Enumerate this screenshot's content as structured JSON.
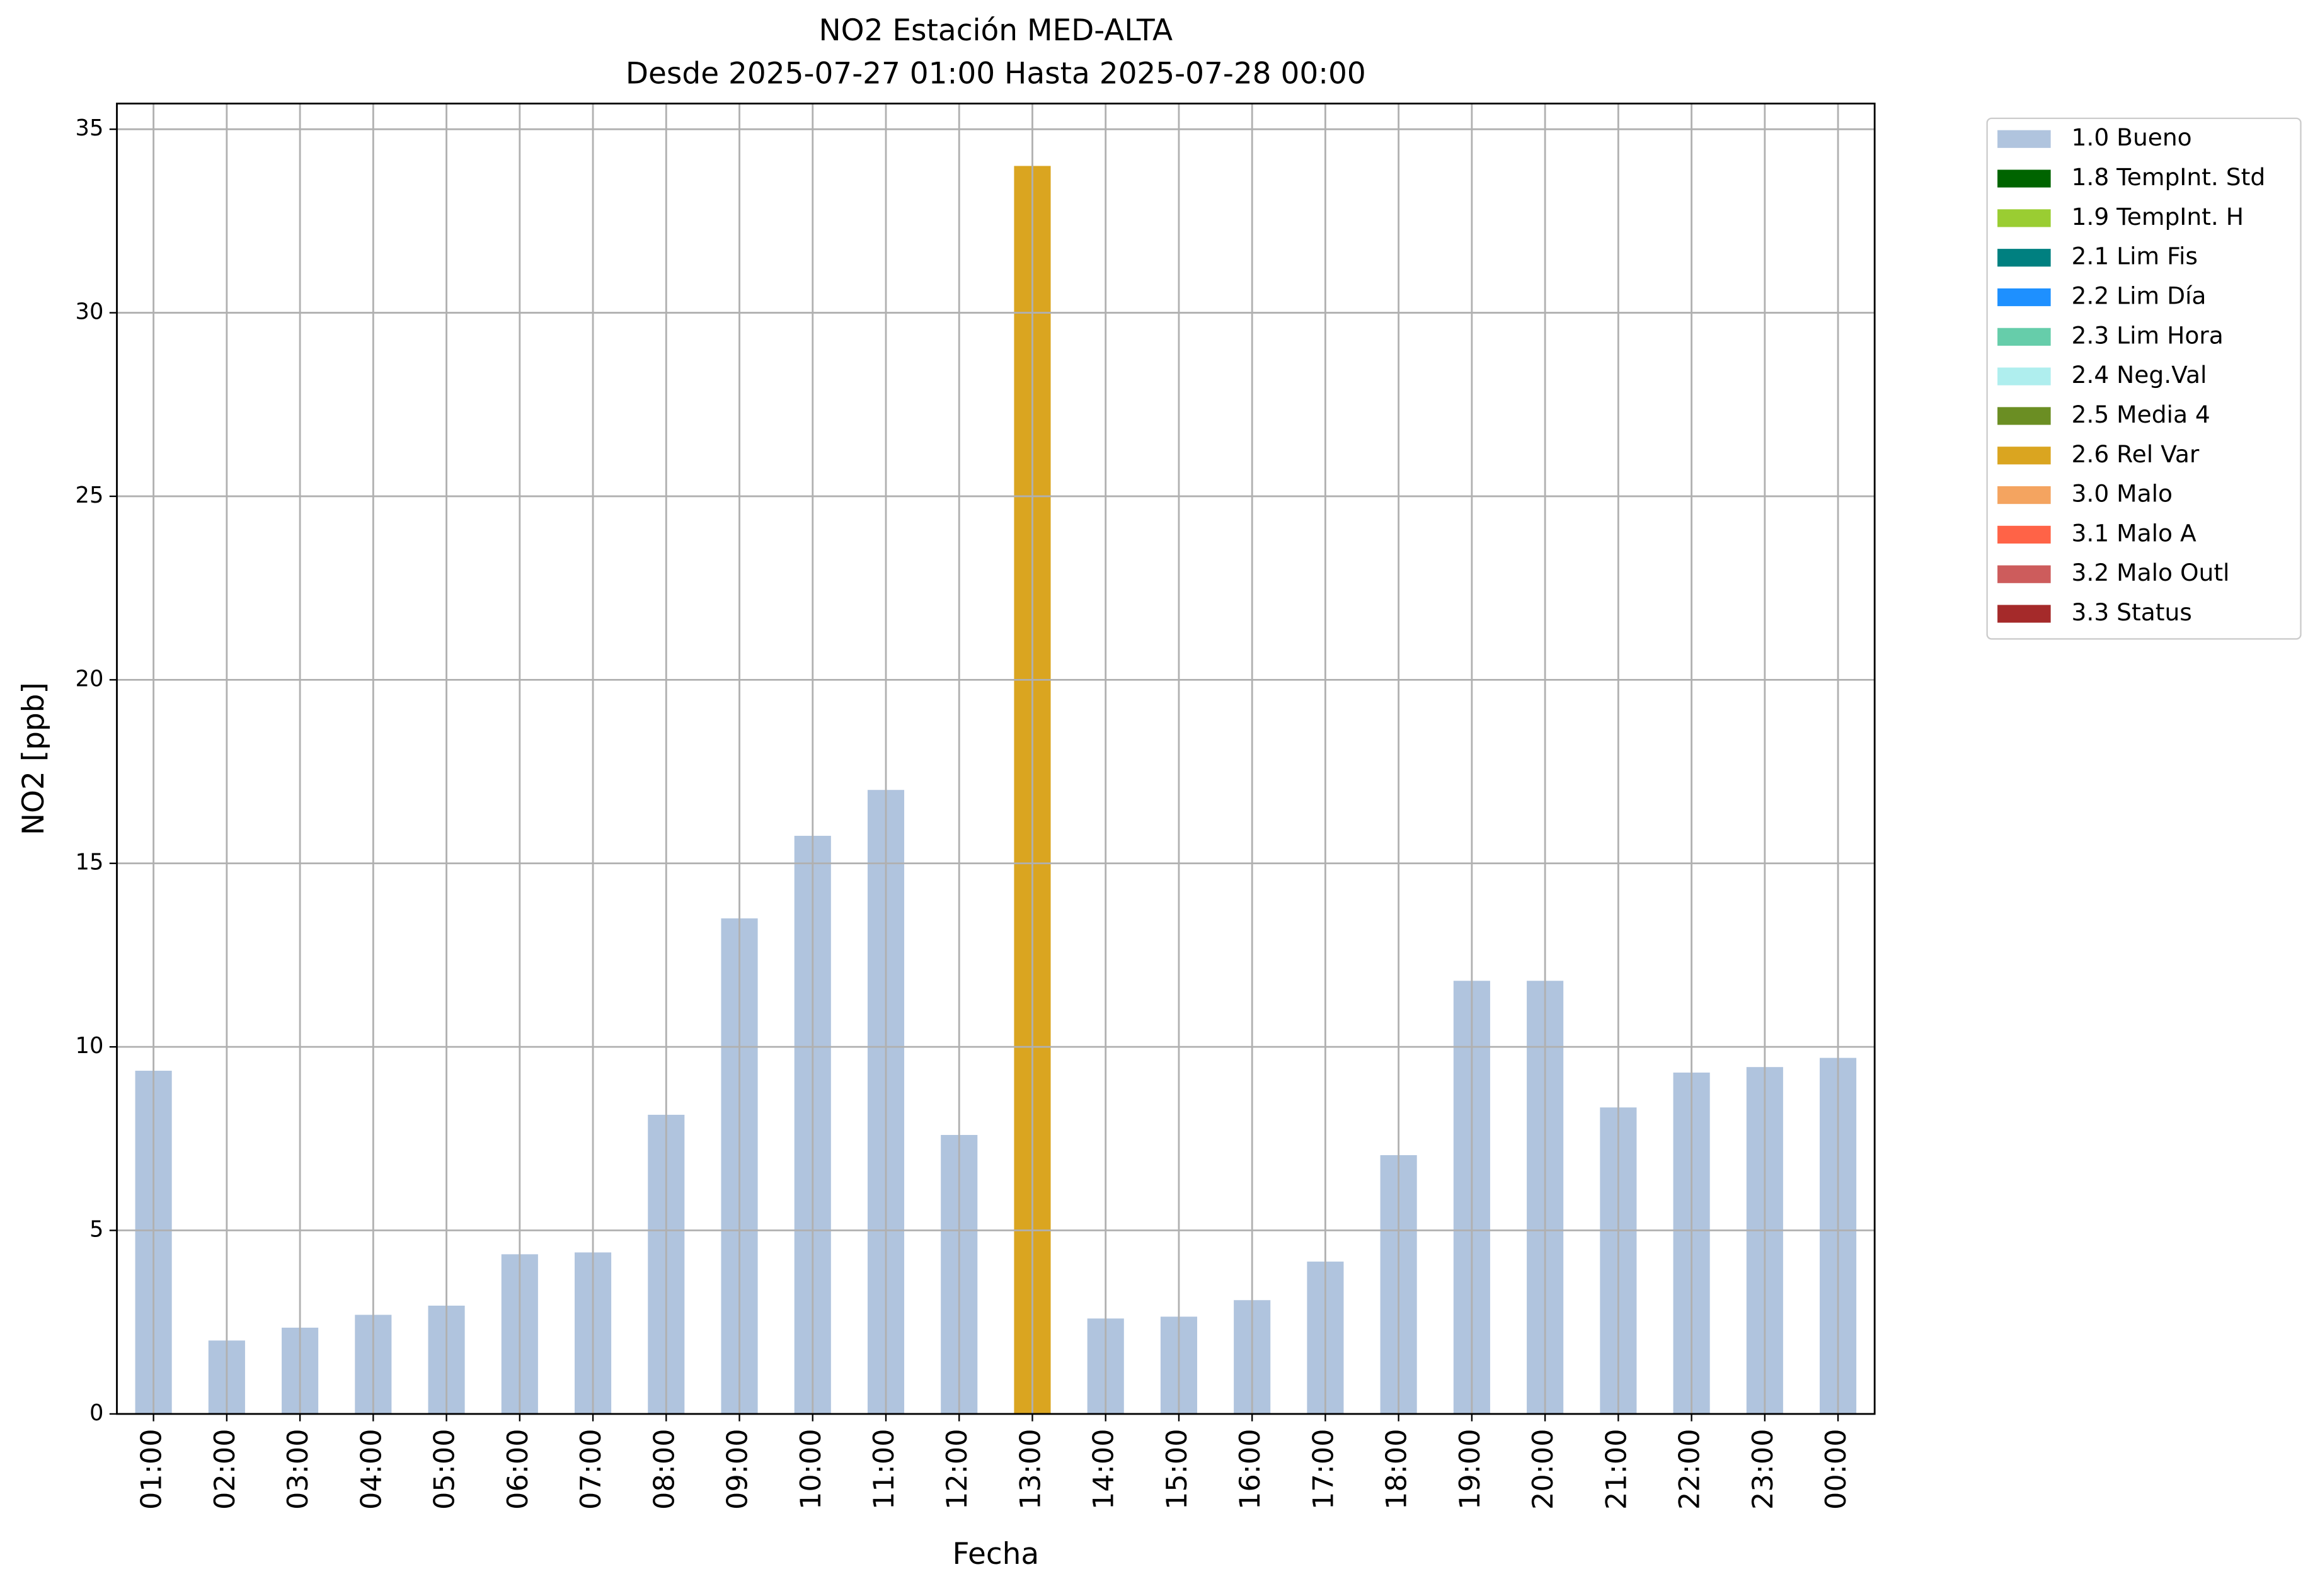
{
  "chart_data": {
    "type": "bar",
    "stacked": true,
    "title": "NO2 Estación MED-ALTA",
    "subtitle": "Desde 2025-07-27 01:00 Hasta 2025-07-28 00:00",
    "x_label": "Fecha",
    "y_label": "NO2 [ppb]",
    "categories": [
      "01:00",
      "02:00",
      "03:00",
      "04:00",
      "05:00",
      "06:00",
      "07:00",
      "08:00",
      "09:00",
      "10:00",
      "11:00",
      "12:00",
      "13:00",
      "14:00",
      "15:00",
      "16:00",
      "17:00",
      "18:00",
      "19:00",
      "20:00",
      "21:00",
      "22:00",
      "23:00",
      "00:00"
    ],
    "series": [
      {
        "name": "1.0 Bueno",
        "color": "#b0c4de",
        "values": [
          9.35,
          2.0,
          2.35,
          2.7,
          2.95,
          4.35,
          4.4,
          8.15,
          13.5,
          15.75,
          17.0,
          7.6,
          null,
          2.6,
          2.65,
          3.1,
          4.15,
          7.05,
          11.8,
          11.8,
          8.35,
          9.3,
          9.45,
          9.7
        ]
      },
      {
        "name": "1.8 TempInt. Std",
        "color": "#006400",
        "values": [
          null,
          null,
          null,
          null,
          null,
          null,
          null,
          null,
          null,
          null,
          null,
          null,
          null,
          null,
          null,
          null,
          null,
          null,
          null,
          null,
          null,
          null,
          null,
          null
        ]
      },
      {
        "name": "1.9 TempInt. H",
        "color": "#9acd32",
        "values": [
          null,
          null,
          null,
          null,
          null,
          null,
          null,
          null,
          null,
          null,
          null,
          null,
          null,
          null,
          null,
          null,
          null,
          null,
          null,
          null,
          null,
          null,
          null,
          null
        ]
      },
      {
        "name": "2.1 Lim Fis",
        "color": "#008080",
        "values": [
          null,
          null,
          null,
          null,
          null,
          null,
          null,
          null,
          null,
          null,
          null,
          null,
          null,
          null,
          null,
          null,
          null,
          null,
          null,
          null,
          null,
          null,
          null,
          null
        ]
      },
      {
        "name": "2.2 Lim Día",
        "color": "#1e90ff",
        "values": [
          null,
          null,
          null,
          null,
          null,
          null,
          null,
          null,
          null,
          null,
          null,
          null,
          null,
          null,
          null,
          null,
          null,
          null,
          null,
          null,
          null,
          null,
          null,
          null
        ]
      },
      {
        "name": "2.3 Lim Hora",
        "color": "#66cdaa",
        "values": [
          null,
          null,
          null,
          null,
          null,
          null,
          null,
          null,
          null,
          null,
          null,
          null,
          null,
          null,
          null,
          null,
          null,
          null,
          null,
          null,
          null,
          null,
          null,
          null
        ]
      },
      {
        "name": "2.4 Neg.Val",
        "color": "#afeeee",
        "values": [
          null,
          null,
          null,
          null,
          null,
          null,
          null,
          null,
          null,
          null,
          null,
          null,
          null,
          null,
          null,
          null,
          null,
          null,
          null,
          null,
          null,
          null,
          null,
          null
        ]
      },
      {
        "name": "2.5 Media 4",
        "color": "#6b8e23",
        "values": [
          null,
          null,
          null,
          null,
          null,
          null,
          null,
          null,
          null,
          null,
          null,
          null,
          null,
          null,
          null,
          null,
          null,
          null,
          null,
          null,
          null,
          null,
          null,
          null
        ]
      },
      {
        "name": "2.6 Rel Var",
        "color": "#daa520",
        "values": [
          null,
          null,
          null,
          null,
          null,
          null,
          null,
          null,
          null,
          null,
          null,
          null,
          34.0,
          null,
          null,
          null,
          null,
          null,
          null,
          null,
          null,
          null,
          null,
          null
        ]
      },
      {
        "name": "3.0 Malo",
        "color": "#f4a460",
        "values": [
          null,
          null,
          null,
          null,
          null,
          null,
          null,
          null,
          null,
          null,
          null,
          null,
          null,
          null,
          null,
          null,
          null,
          null,
          null,
          null,
          null,
          null,
          null,
          null
        ]
      },
      {
        "name": "3.1 Malo A",
        "color": "#ff6347",
        "values": [
          null,
          null,
          null,
          null,
          null,
          null,
          null,
          null,
          null,
          null,
          null,
          null,
          null,
          null,
          null,
          null,
          null,
          null,
          null,
          null,
          null,
          null,
          null,
          null
        ]
      },
      {
        "name": "3.2 Malo Outl",
        "color": "#cd5c5c",
        "values": [
          null,
          null,
          null,
          null,
          null,
          null,
          null,
          null,
          null,
          null,
          null,
          null,
          null,
          null,
          null,
          null,
          null,
          null,
          null,
          null,
          null,
          null,
          null,
          null
        ]
      },
      {
        "name": "3.3 Status",
        "color": "#a52a2a",
        "values": [
          null,
          null,
          null,
          null,
          null,
          null,
          null,
          null,
          null,
          null,
          null,
          null,
          null,
          null,
          null,
          null,
          null,
          null,
          null,
          null,
          null,
          null,
          null,
          null
        ]
      }
    ],
    "ylim": [
      0,
      35.7
    ],
    "yticks": [
      0,
      5,
      10,
      15,
      20,
      25,
      30,
      35
    ],
    "grid": true,
    "legend": "outside right"
  }
}
